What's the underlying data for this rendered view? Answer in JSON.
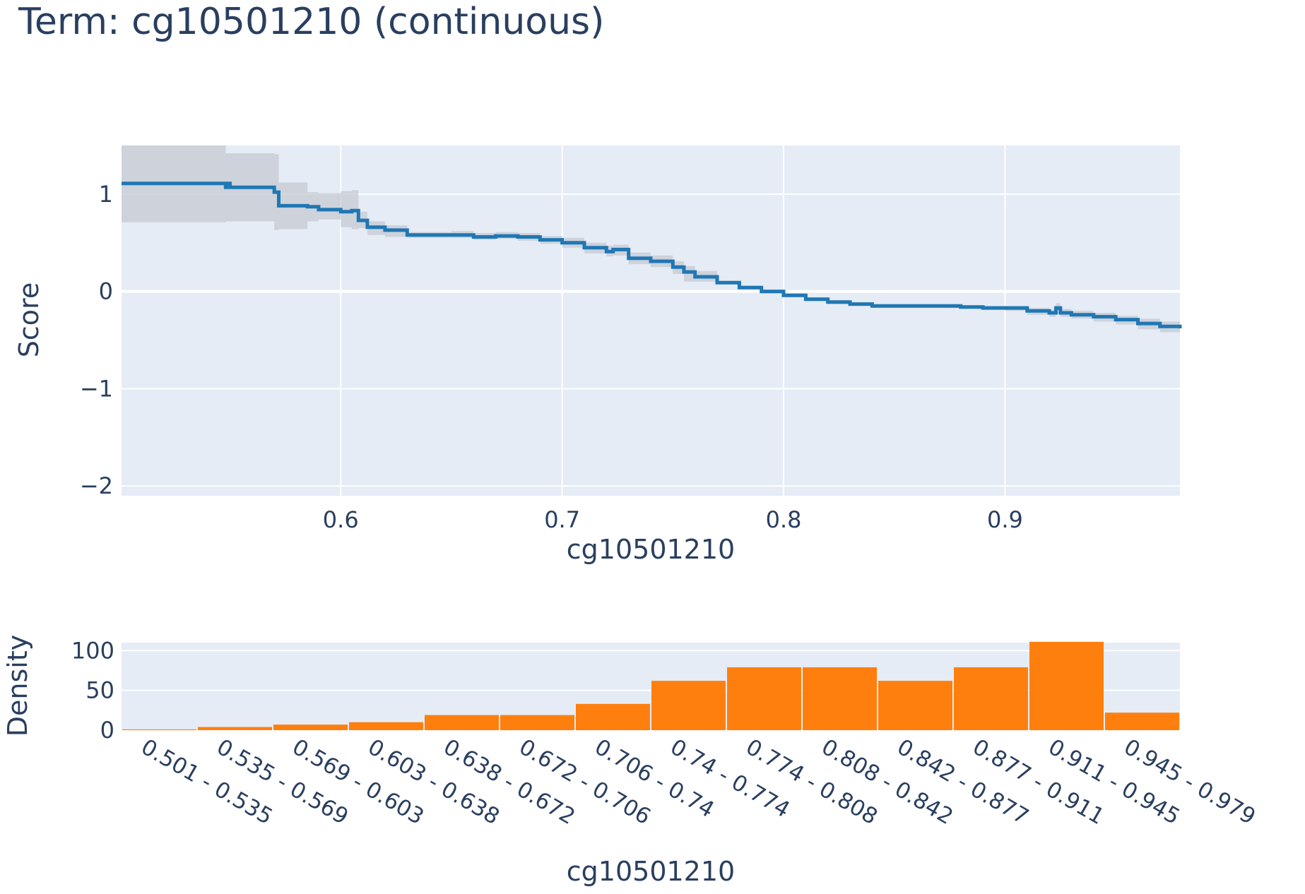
{
  "colors": {
    "line": "#1f77b4",
    "band": "#c4c9d2",
    "bar": "#ff7f0e",
    "plot_bg": "#e5ecf6",
    "grid": "#ffffff",
    "text": "#2a3f5f"
  },
  "chart_data": [
    {
      "type": "line",
      "title": "Term: cg10501210 (continuous)",
      "xlabel": "cg10501210",
      "ylabel": "Score",
      "xlim": [
        0.501,
        0.979
      ],
      "ylim": [
        -2.1,
        1.5
      ],
      "x_ticks": [
        0.6,
        0.7,
        0.8,
        0.9
      ],
      "x_tick_labels": [
        "0.6",
        "0.7",
        "0.8",
        "0.9"
      ],
      "y_ticks": [
        -2,
        -1,
        0,
        1
      ],
      "y_tick_labels": [
        "−2",
        "−1",
        "0",
        "1"
      ],
      "grid": true,
      "series": [
        {
          "x": [
            0.501,
            0.52,
            0.55,
            0.548,
            0.57,
            0.572,
            0.585,
            0.59,
            0.6,
            0.605,
            0.608,
            0.612,
            0.62,
            0.63,
            0.64,
            0.65,
            0.66,
            0.67,
            0.68,
            0.69,
            0.7,
            0.71,
            0.72,
            0.723,
            0.73,
            0.74,
            0.75,
            0.755,
            0.76,
            0.77,
            0.78,
            0.79,
            0.8,
            0.81,
            0.82,
            0.83,
            0.84,
            0.85,
            0.86,
            0.87,
            0.88,
            0.89,
            0.9,
            0.91,
            0.92,
            0.923,
            0.925,
            0.93,
            0.94,
            0.95,
            0.96,
            0.97,
            0.979
          ],
          "y": [
            1.11,
            1.11,
            1.1,
            1.07,
            1.02,
            0.88,
            0.87,
            0.84,
            0.82,
            0.83,
            0.73,
            0.66,
            0.63,
            0.58,
            0.58,
            0.58,
            0.56,
            0.57,
            0.56,
            0.53,
            0.5,
            0.45,
            0.41,
            0.43,
            0.34,
            0.31,
            0.25,
            0.2,
            0.15,
            0.09,
            0.04,
            0.0,
            -0.04,
            -0.08,
            -0.11,
            -0.13,
            -0.15,
            -0.15,
            -0.15,
            -0.15,
            -0.16,
            -0.17,
            -0.17,
            -0.2,
            -0.22,
            -0.17,
            -0.22,
            -0.24,
            -0.26,
            -0.29,
            -0.33,
            -0.36,
            -0.38
          ],
          "lower": [
            0.71,
            0.71,
            0.71,
            0.72,
            0.63,
            0.64,
            0.72,
            0.74,
            0.66,
            0.64,
            0.65,
            0.58,
            0.56,
            0.55,
            0.55,
            0.55,
            0.53,
            0.54,
            0.52,
            0.49,
            0.45,
            0.39,
            0.36,
            0.37,
            0.28,
            0.25,
            0.18,
            0.1,
            0.1,
            0.07,
            0.02,
            -0.02,
            -0.06,
            -0.1,
            -0.13,
            -0.15,
            -0.17,
            -0.17,
            -0.17,
            -0.17,
            -0.18,
            -0.19,
            -0.2,
            -0.24,
            -0.26,
            -0.22,
            -0.26,
            -0.28,
            -0.31,
            -0.34,
            -0.39,
            -0.42,
            -0.43
          ],
          "upper": [
            1.5,
            1.5,
            1.5,
            1.42,
            1.41,
            1.12,
            1.02,
            1.01,
            1.03,
            1.04,
            0.82,
            0.72,
            0.68,
            0.61,
            0.61,
            0.62,
            0.6,
            0.61,
            0.6,
            0.57,
            0.55,
            0.5,
            0.47,
            0.48,
            0.4,
            0.37,
            0.31,
            0.26,
            0.21,
            0.11,
            0.06,
            0.02,
            -0.02,
            -0.06,
            -0.09,
            -0.11,
            -0.13,
            -0.13,
            -0.13,
            -0.13,
            -0.14,
            -0.15,
            -0.15,
            -0.17,
            -0.19,
            -0.12,
            -0.18,
            -0.2,
            -0.22,
            -0.25,
            -0.28,
            -0.31,
            -0.34
          ]
        }
      ]
    },
    {
      "type": "bar",
      "xlabel": "cg10501210",
      "ylabel": "Density",
      "ylim": [
        0,
        110
      ],
      "y_ticks": [
        0,
        50,
        100
      ],
      "y_tick_labels": [
        "0",
        "50",
        "100"
      ],
      "grid": true,
      "categories": [
        "0.501 - 0.535",
        "0.535 - 0.569",
        "0.569 - 0.603",
        "0.603 - 0.638",
        "0.638 - 0.672",
        "0.672 - 0.706",
        "0.706 - 0.74",
        "0.74 - 0.774",
        "0.774 - 0.808",
        "0.808 - 0.842",
        "0.842 - 0.877",
        "0.877 - 0.911",
        "0.911 - 0.945",
        "0.945 - 0.979"
      ],
      "values": [
        1,
        4,
        7,
        10,
        19,
        19,
        33,
        62,
        79,
        79,
        62,
        79,
        111,
        22
      ]
    }
  ]
}
